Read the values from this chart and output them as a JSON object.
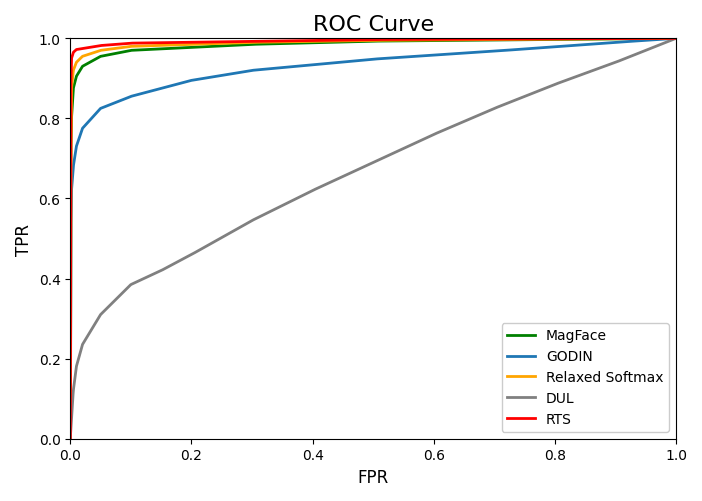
{
  "title": "ROC Curve",
  "xlabel": "FPR",
  "ylabel": "TPR",
  "xlim": [
    0.0,
    1.0
  ],
  "ylim": [
    0.0,
    1.0
  ],
  "legend": [
    "MagFace",
    "GODIN",
    "Relaxed Softmax",
    "DUL",
    "RTS"
  ],
  "colors": {
    "MagFace": "#008000",
    "GODIN": "#1f77b4",
    "Relaxed Softmax": "#ffa500",
    "DUL": "#808080",
    "RTS": "#ff0000"
  },
  "linewidth": 2.0,
  "background_color": "#ffffff",
  "title_fontsize": 16,
  "figsize": [
    7.02,
    5.02
  ],
  "dpi": 100
}
